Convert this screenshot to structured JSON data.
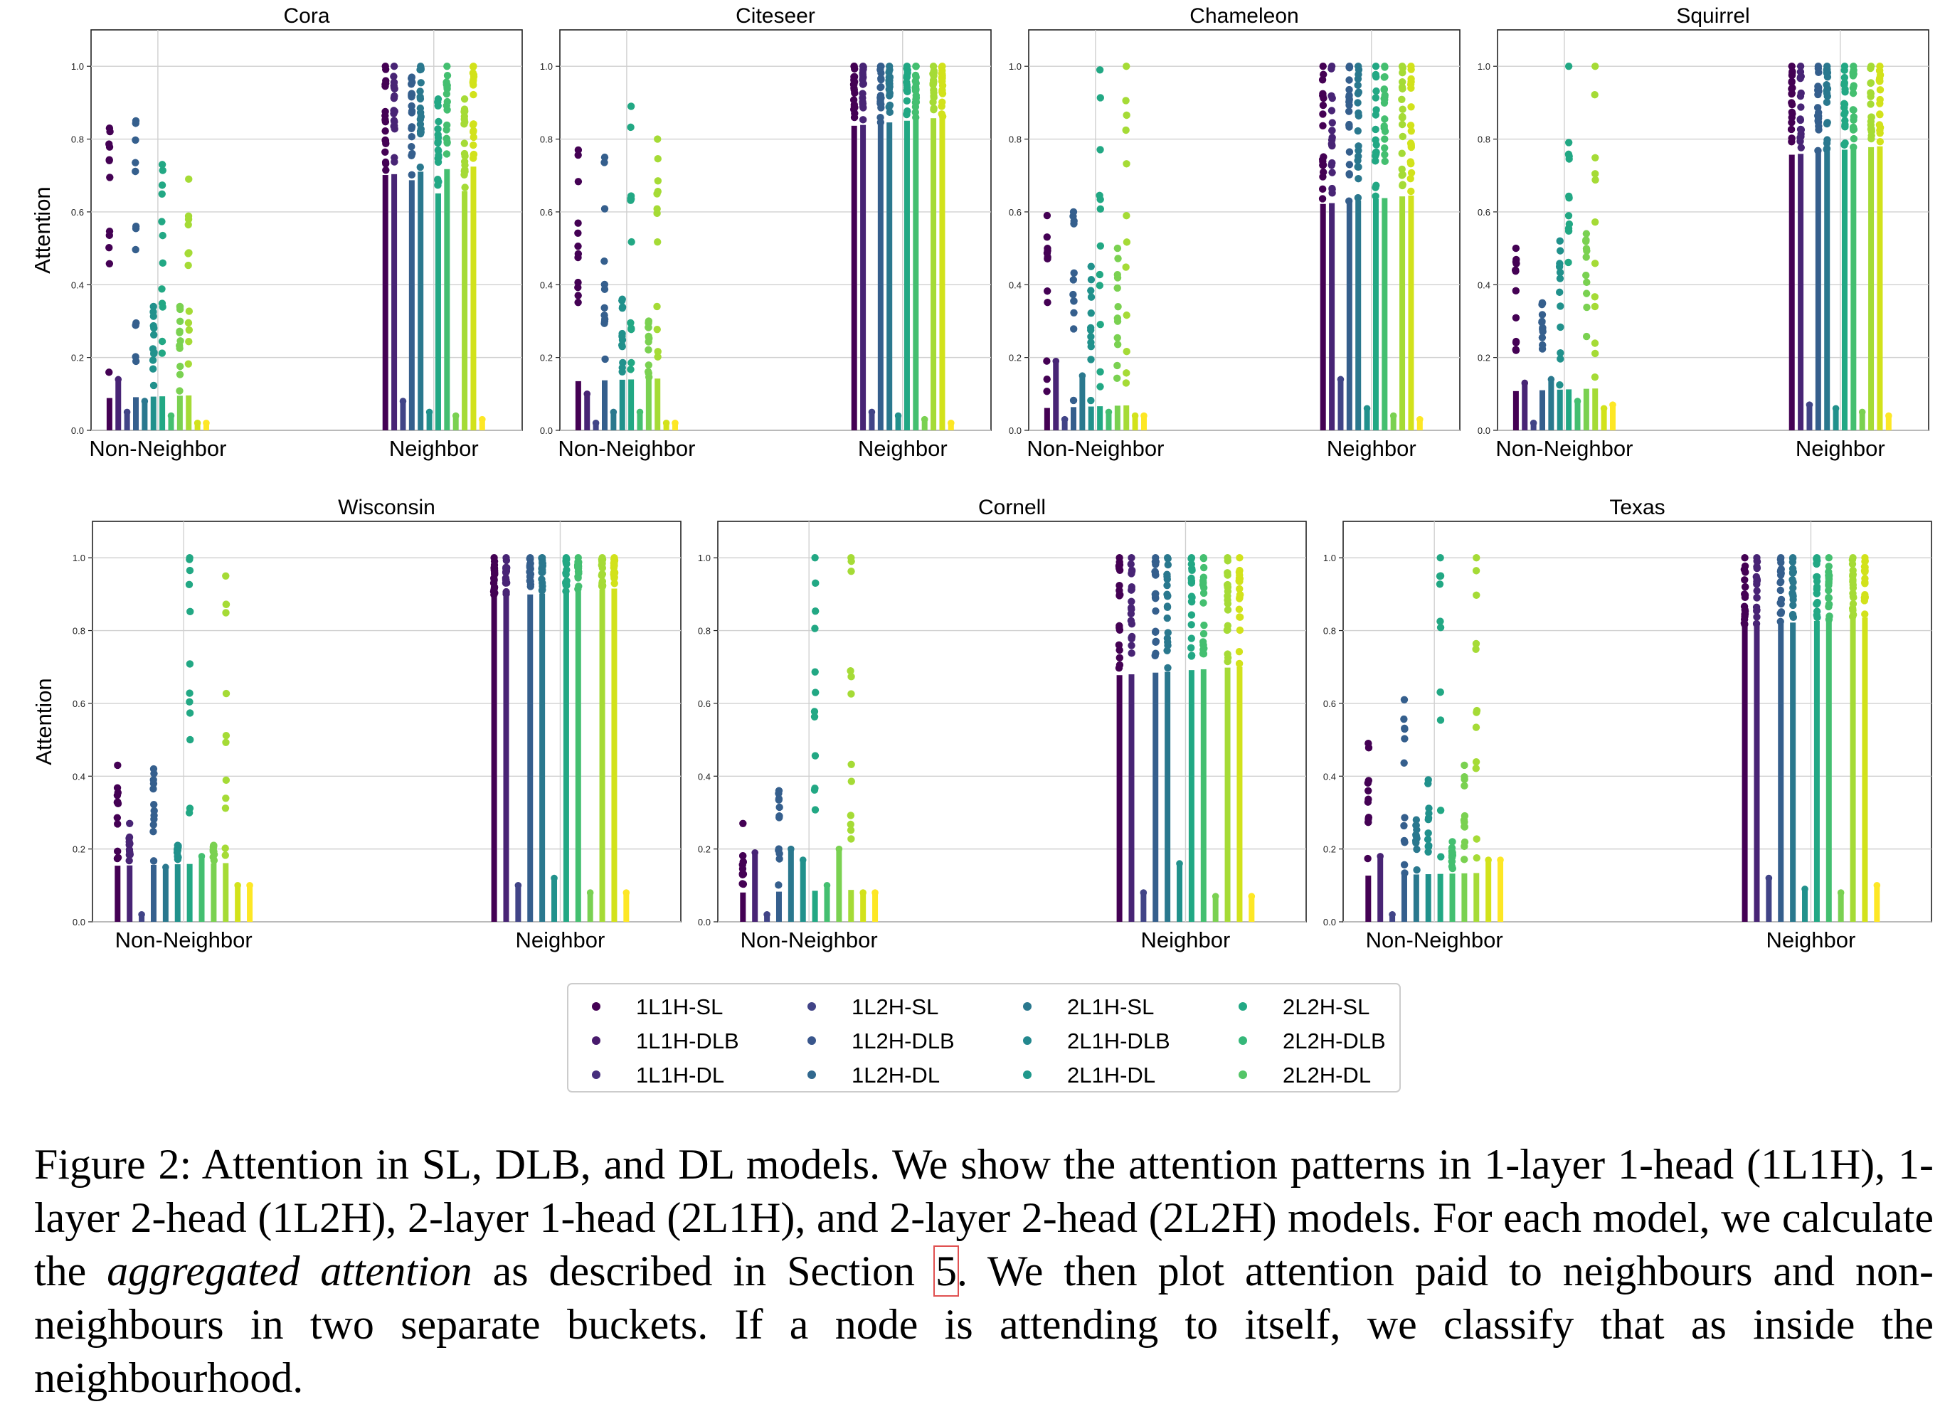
{
  "figure": {
    "ylabel": "Attention",
    "yticks": [
      "0.0",
      "0.2",
      "0.4",
      "0.6",
      "0.8",
      "1.0"
    ],
    "categories": [
      "Non-Neighbor",
      "Neighbor"
    ]
  },
  "legend": {
    "series": [
      {
        "name": "1L1H-SL",
        "color": "#440154"
      },
      {
        "name": "1L1H-DLB",
        "color": "#481a6c"
      },
      {
        "name": "1L1H-DL",
        "color": "#472f7d"
      },
      {
        "name": "1L2H-SL",
        "color": "#414487"
      },
      {
        "name": "1L2H-DLB",
        "color": "#39568c"
      },
      {
        "name": "1L2H-DL",
        "color": "#31688e"
      },
      {
        "name": "2L1H-SL",
        "color": "#2a788e"
      },
      {
        "name": "2L1H-DLB",
        "color": "#23888e"
      },
      {
        "name": "2L1H-DL",
        "color": "#1f988b"
      },
      {
        "name": "2L2H-SL",
        "color": "#22a884"
      },
      {
        "name": "2L2H-DLB",
        "color": "#35b779"
      },
      {
        "name": "2L2H-DL",
        "color": "#54c568"
      }
    ],
    "grid_colors": [
      "#440154",
      "#482475",
      "#414487",
      "#355f8d",
      "#2a788e",
      "#21918c",
      "#22a884",
      "#44bf70",
      "#7ad151",
      "#a5db36",
      "#d2e21b",
      "#fde725"
    ]
  },
  "chart_data": [
    {
      "type": "scatter",
      "title": "Cora",
      "x_categories": [
        "Non-Neighbor",
        "Neighbor"
      ],
      "ylim": [
        0,
        1.1
      ],
      "ylabel": "Attention",
      "max_attention": {
        "Non-Neighbor": [
          0.83,
          0.14,
          0.05,
          0.85,
          0.08,
          0.34,
          0.73,
          0.04,
          0.34,
          0.69,
          0.02,
          0.02
        ],
        "Neighbor": [
          1.0,
          1.0,
          0.08,
          0.97,
          1.0,
          0.05,
          0.91,
          1.0,
          0.04,
          0.91,
          1.0,
          0.03
        ]
      }
    },
    {
      "type": "scatter",
      "title": "Citeseer",
      "x_categories": [
        "Non-Neighbor",
        "Neighbor"
      ],
      "ylim": [
        0,
        1.1
      ],
      "max_attention": {
        "Non-Neighbor": [
          0.77,
          0.1,
          0.02,
          0.75,
          0.05,
          0.36,
          0.89,
          0.05,
          0.3,
          0.8,
          0.02,
          0.02
        ],
        "Neighbor": [
          1.0,
          1.0,
          0.05,
          1.0,
          1.0,
          0.04,
          1.0,
          1.0,
          0.03,
          1.0,
          1.0,
          0.02
        ]
      }
    },
    {
      "type": "scatter",
      "title": "Chameleon",
      "x_categories": [
        "Non-Neighbor",
        "Neighbor"
      ],
      "ylim": [
        0,
        1.1
      ],
      "max_attention": {
        "Non-Neighbor": [
          0.59,
          0.19,
          0.03,
          0.6,
          0.15,
          0.45,
          0.99,
          0.05,
          0.5,
          1.0,
          0.04,
          0.04
        ],
        "Neighbor": [
          1.0,
          1.0,
          0.14,
          1.0,
          1.0,
          0.06,
          1.0,
          1.0,
          0.04,
          1.0,
          1.0,
          0.03
        ]
      }
    },
    {
      "type": "scatter",
      "title": "Squirrel",
      "x_categories": [
        "Non-Neighbor",
        "Neighbor"
      ],
      "ylim": [
        0,
        1.1
      ],
      "max_attention": {
        "Non-Neighbor": [
          0.5,
          0.13,
          0.02,
          0.35,
          0.14,
          0.52,
          1.0,
          0.08,
          0.54,
          1.0,
          0.06,
          0.07
        ],
        "Neighbor": [
          1.0,
          1.0,
          0.07,
          1.0,
          1.0,
          0.06,
          1.0,
          1.0,
          0.05,
          1.0,
          1.0,
          0.04
        ]
      }
    },
    {
      "type": "scatter",
      "title": "Wisconsin",
      "x_categories": [
        "Non-Neighbor",
        "Neighbor"
      ],
      "ylim": [
        0,
        1.1
      ],
      "ylabel": "Attention",
      "max_attention": {
        "Non-Neighbor": [
          0.43,
          0.27,
          0.02,
          0.42,
          0.15,
          0.21,
          1.0,
          0.18,
          0.21,
          0.95,
          0.1,
          0.1
        ],
        "Neighbor": [
          1.0,
          1.0,
          0.1,
          1.0,
          1.0,
          0.12,
          1.0,
          1.0,
          0.08,
          1.0,
          1.0,
          0.08
        ]
      }
    },
    {
      "type": "scatter",
      "title": "Cornell",
      "x_categories": [
        "Non-Neighbor",
        "Neighbor"
      ],
      "ylim": [
        0,
        1.1
      ],
      "max_attention": {
        "Non-Neighbor": [
          0.27,
          0.19,
          0.02,
          0.36,
          0.2,
          0.17,
          1.0,
          0.1,
          0.2,
          1.0,
          0.08,
          0.08
        ],
        "Neighbor": [
          1.0,
          1.0,
          0.08,
          1.0,
          1.0,
          0.16,
          1.0,
          1.0,
          0.07,
          1.0,
          1.0,
          0.07
        ]
      }
    },
    {
      "type": "scatter",
      "title": "Texas",
      "x_categories": [
        "Non-Neighbor",
        "Neighbor"
      ],
      "ylim": [
        0,
        1.1
      ],
      "max_attention": {
        "Non-Neighbor": [
          0.49,
          0.18,
          0.02,
          0.61,
          0.28,
          0.39,
          1.0,
          0.22,
          0.43,
          1.0,
          0.17,
          0.17
        ],
        "Neighbor": [
          1.0,
          1.0,
          0.12,
          1.0,
          1.0,
          0.09,
          1.0,
          1.0,
          0.08,
          1.0,
          1.0,
          0.1
        ]
      }
    }
  ],
  "caption": {
    "p1": "Figure 2: Attention in SL, DLB, and DL models. We show the attention patterns in 1-layer 1-head (1L1H), 1-layer 2-head (1L2H), 2-layer 1-head (2L1H), and 2-layer 2-head (2L2H) models. For each model, we calculate the ",
    "emph": "aggregated attention",
    "p2": " as described in Section ",
    "ref": "5",
    "p3": ". We then plot attention paid to neighbours and non-neighbours in two separate buckets. If a node is attending to itself, we classify that as inside the neighbourhood."
  }
}
